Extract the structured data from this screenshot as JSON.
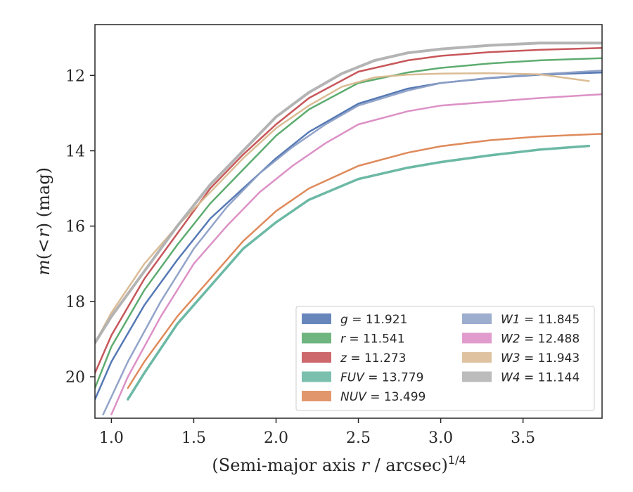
{
  "chart_data": {
    "type": "line",
    "xlabel": "(Semi-major axis r / arcsec)^{1/4}",
    "xlabel_parts": {
      "pre": "(Semi-major axis ",
      "var": "r",
      "post": " / arcsec)",
      "sup": "1/4"
    },
    "ylabel": "m(<r) (mag)",
    "ylabel_parts": {
      "m": "m",
      "paren_open": "(",
      "lt": "<",
      "r": "r",
      "paren_close": ")",
      "unit": " (mag)"
    },
    "xlim": [
      0.9,
      3.98
    ],
    "ylim": [
      21.1,
      10.65
    ],
    "y_inverted": true,
    "x_ticks": [
      1.0,
      1.5,
      2.0,
      2.5,
      3.0,
      3.5
    ],
    "x_tick_labels": [
      "1.0",
      "1.5",
      "2.0",
      "2.5",
      "3.0",
      "3.5"
    ],
    "y_ticks": [
      12,
      14,
      16,
      18,
      20
    ],
    "y_tick_labels": [
      "12",
      "14",
      "16",
      "18",
      "20"
    ],
    "grid": false,
    "legend_placement": "lower-right",
    "series": [
      {
        "name": "g = 11.921",
        "label_var": "g",
        "label_value": "= 11.921",
        "color": "#4c72b0",
        "total": 11.921,
        "x": [
          0.9,
          1.0,
          1.2,
          1.4,
          1.6,
          1.8,
          2.0,
          2.2,
          2.5,
          2.8,
          3.0,
          3.3,
          3.6,
          3.98
        ],
        "y": [
          20.6,
          19.6,
          18.1,
          16.9,
          15.8,
          15.0,
          14.2,
          13.5,
          12.75,
          12.35,
          12.2,
          12.07,
          11.98,
          11.92
        ]
      },
      {
        "name": "r = 11.541",
        "label_var": "r",
        "label_value": "= 11.541",
        "color": "#55a868",
        "total": 11.541,
        "x": [
          0.9,
          1.0,
          1.2,
          1.4,
          1.6,
          1.8,
          2.0,
          2.2,
          2.5,
          2.8,
          3.0,
          3.3,
          3.6,
          3.98
        ],
        "y": [
          20.3,
          19.2,
          17.7,
          16.5,
          15.4,
          14.5,
          13.6,
          12.9,
          12.2,
          11.92,
          11.8,
          11.68,
          11.6,
          11.54
        ]
      },
      {
        "name": "z = 11.273",
        "label_var": "z",
        "label_value": "= 11.273",
        "color": "#c44e52",
        "total": 11.273,
        "x": [
          0.9,
          1.0,
          1.2,
          1.4,
          1.6,
          1.8,
          2.0,
          2.2,
          2.5,
          2.8,
          3.0,
          3.3,
          3.6,
          3.98
        ],
        "y": [
          19.9,
          18.9,
          17.4,
          16.2,
          15.0,
          14.1,
          13.3,
          12.6,
          11.9,
          11.6,
          11.48,
          11.38,
          11.32,
          11.27
        ]
      },
      {
        "name": "FUV = 13.779",
        "label_var": "FUV",
        "label_value": "= 13.779",
        "color": "#64b5a0",
        "total": 13.779,
        "x": [
          1.1,
          1.2,
          1.4,
          1.6,
          1.8,
          2.0,
          2.2,
          2.5,
          2.8,
          3.0,
          3.3,
          3.6,
          3.9
        ],
        "y": [
          20.6,
          19.9,
          18.6,
          17.6,
          16.6,
          15.9,
          15.3,
          14.75,
          14.45,
          14.3,
          14.12,
          13.97,
          13.87
        ]
      },
      {
        "name": "NUV = 13.499",
        "label_var": "NUV",
        "label_value": "= 13.499",
        "color": "#dd8452",
        "total": 13.499,
        "x": [
          1.1,
          1.2,
          1.4,
          1.6,
          1.8,
          2.0,
          2.2,
          2.5,
          2.8,
          3.0,
          3.3,
          3.6,
          3.98
        ],
        "y": [
          20.3,
          19.6,
          18.4,
          17.4,
          16.4,
          15.6,
          15.0,
          14.4,
          14.05,
          13.88,
          13.72,
          13.62,
          13.55
        ]
      },
      {
        "name": "W1 = 11.845",
        "label_var": "W1",
        "label_value": "= 11.845",
        "color": "#8c9fc6",
        "total": 11.845,
        "x": [
          0.95,
          1.1,
          1.3,
          1.5,
          1.7,
          1.9,
          2.1,
          2.3,
          2.5,
          2.8,
          3.0,
          3.3,
          3.6,
          3.98
        ],
        "y": [
          21.0,
          19.6,
          18.0,
          16.6,
          15.5,
          14.6,
          13.9,
          13.3,
          12.8,
          12.4,
          12.2,
          12.06,
          11.97,
          11.87
        ]
      },
      {
        "name": "W2 = 12.488",
        "label_var": "W2",
        "label_value": "= 12.488",
        "color": "#da8bc3",
        "total": 12.488,
        "x": [
          1.0,
          1.1,
          1.3,
          1.5,
          1.7,
          1.9,
          2.1,
          2.3,
          2.5,
          2.8,
          3.0,
          3.3,
          3.6,
          3.98
        ],
        "y": [
          21.0,
          20.0,
          18.4,
          17.0,
          16.0,
          15.1,
          14.4,
          13.8,
          13.3,
          12.95,
          12.8,
          12.7,
          12.6,
          12.5
        ]
      },
      {
        "name": "W3 = 11.943",
        "label_var": "W3",
        "label_value": "= 11.943",
        "color": "#d9b88f",
        "total": 11.943,
        "x": [
          0.9,
          1.0,
          1.2,
          1.4,
          1.6,
          1.8,
          2.0,
          2.2,
          2.4,
          2.6,
          2.8,
          3.0,
          3.3,
          3.6,
          3.9
        ],
        "y": [
          19.1,
          18.3,
          17.0,
          16.0,
          15.1,
          14.2,
          13.4,
          12.8,
          12.3,
          12.05,
          11.98,
          11.95,
          11.94,
          11.97,
          12.15
        ]
      },
      {
        "name": "W4 = 11.144",
        "label_var": "W4",
        "label_value": "= 11.144",
        "color": "#b0b0b0",
        "total": 11.144,
        "x": [
          0.9,
          1.0,
          1.2,
          1.4,
          1.6,
          1.8,
          2.0,
          2.2,
          2.4,
          2.6,
          2.8,
          3.0,
          3.3,
          3.6,
          3.98
        ],
        "y": [
          19.1,
          18.4,
          17.2,
          16.0,
          14.9,
          14.0,
          13.1,
          12.45,
          11.95,
          11.6,
          11.4,
          11.3,
          11.2,
          11.14,
          11.14
        ]
      }
    ]
  }
}
